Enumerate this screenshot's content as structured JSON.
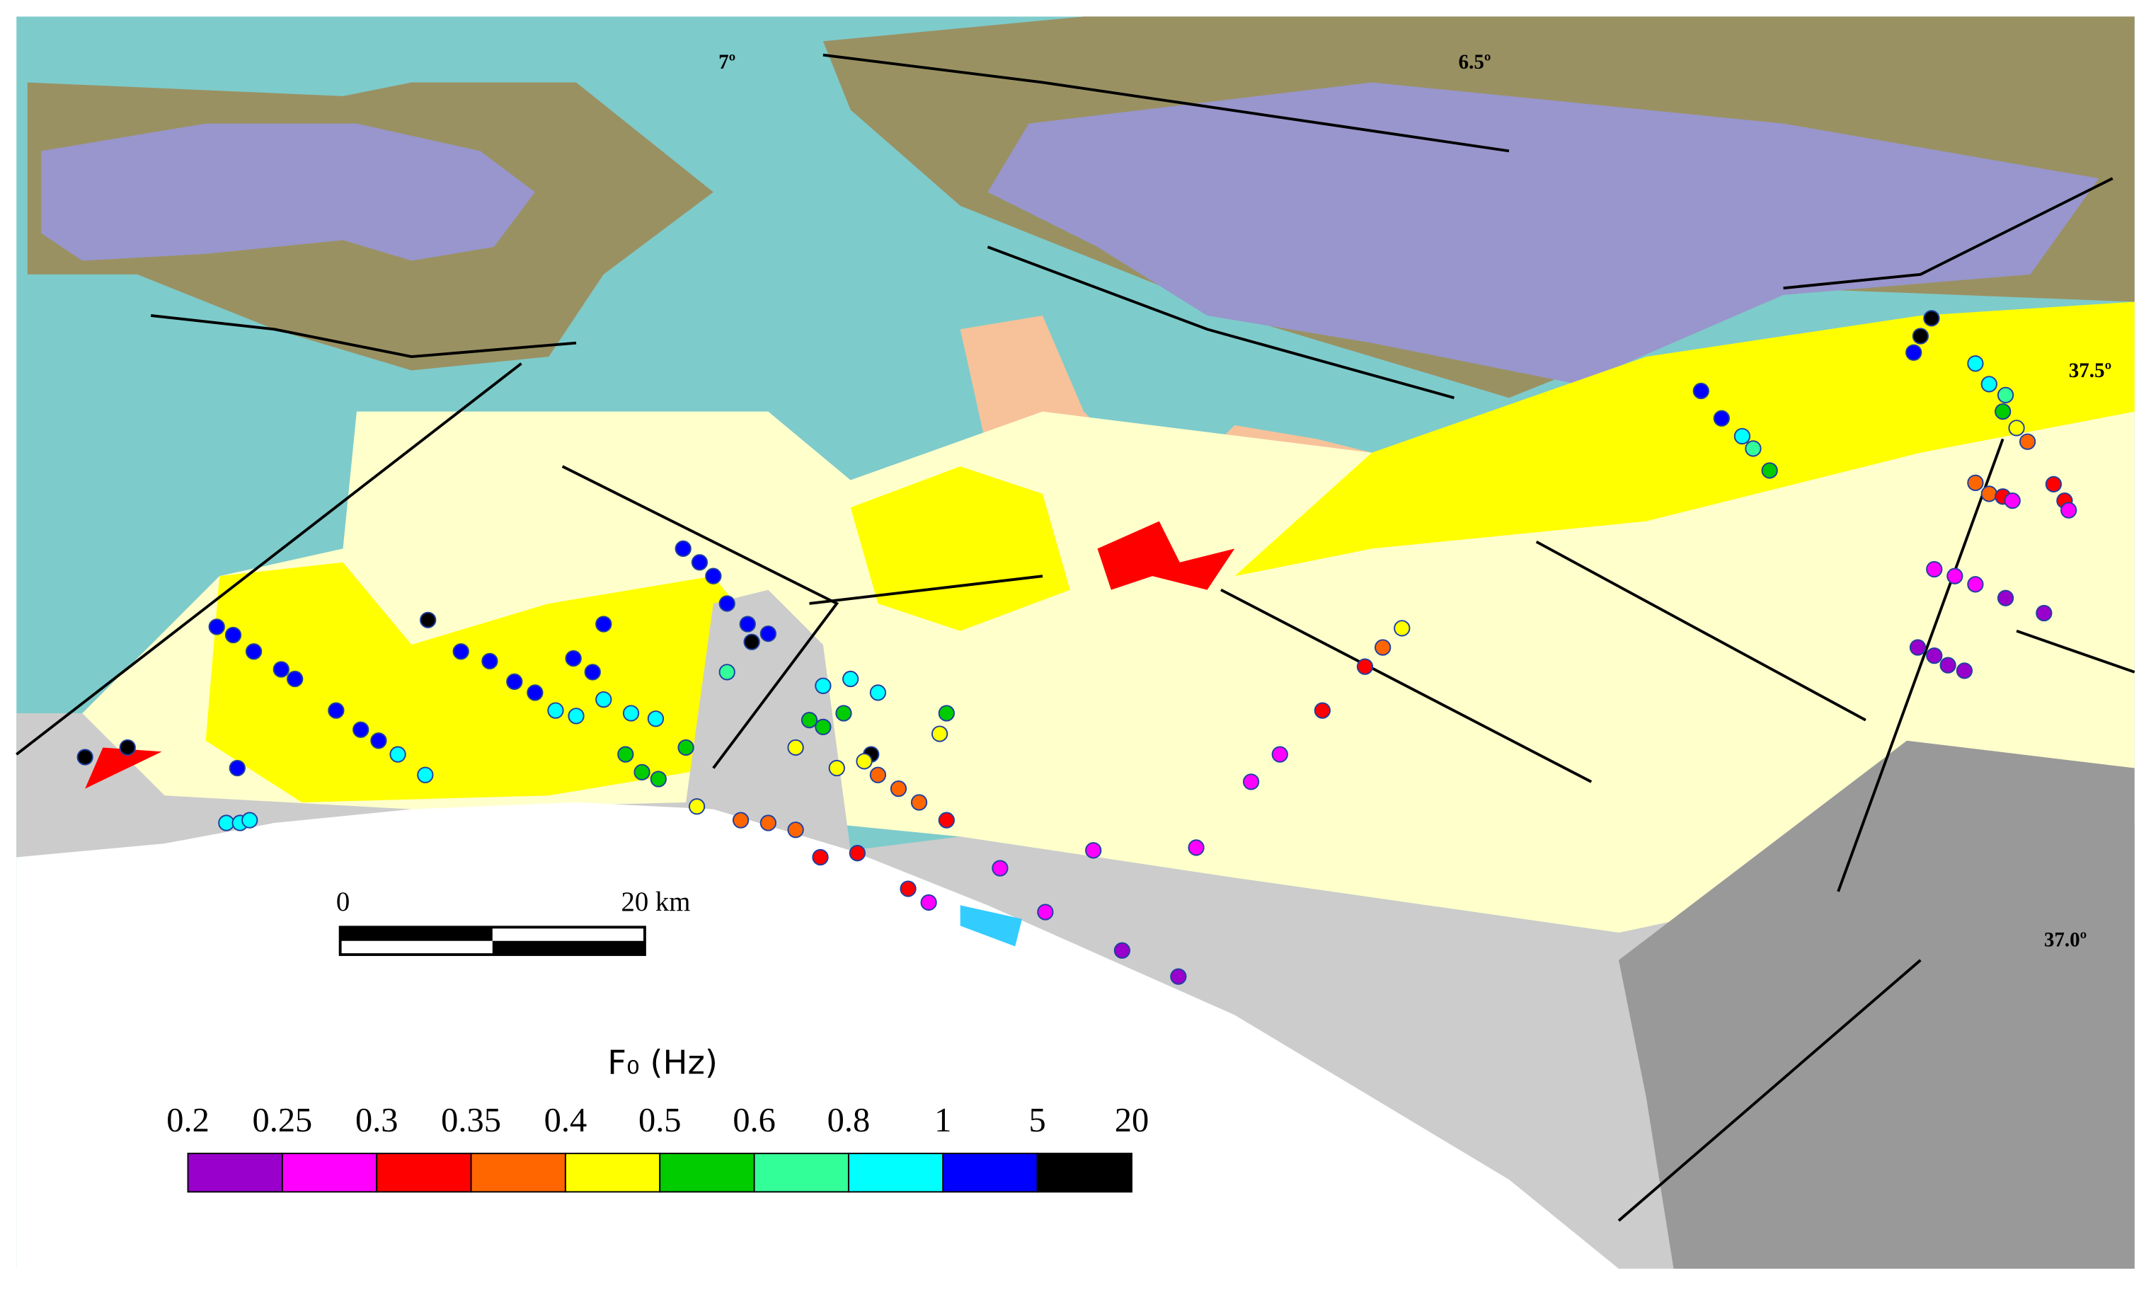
{
  "map": {
    "meridians": [
      "7º",
      "6.5º"
    ],
    "parallels": [
      "37.5º",
      "37.0º"
    ],
    "scale_bar": {
      "start": "0",
      "end": "20 km"
    }
  },
  "legend": {
    "title": "F₀ (Hz)",
    "ticks": [
      0.2,
      0.25,
      0.3,
      0.35,
      0.4,
      0.5,
      0.6,
      0.8,
      1,
      5,
      20
    ],
    "colors": [
      "#9900cc",
      "#ff00ff",
      "#ff0000",
      "#ff6600",
      "#ffff00",
      "#00cc00",
      "#33ff99",
      "#00ffff",
      "#0000ff",
      "#000000"
    ]
  }
}
